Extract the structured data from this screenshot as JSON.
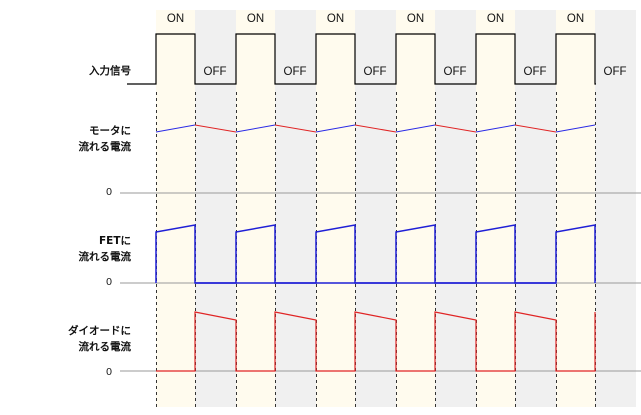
{
  "labels": {
    "input_signal": "入力信号",
    "motor_current_1": "モータに",
    "motor_current_2": "流れる電流",
    "fet_current_1": "FETに",
    "fet_current_2": "流れる電流",
    "diode_current_1": "ダイオードに",
    "diode_current_2": "流れる電流"
  },
  "zero_labels": [
    "0",
    "0",
    "0"
  ],
  "states": [
    "ON",
    "OFF",
    "ON",
    "OFF",
    "ON",
    "OFF",
    "ON",
    "OFF",
    "ON",
    "OFF",
    "ON",
    "OFF"
  ],
  "colors": {
    "on_band": "#fffbee",
    "off_band": "#f0f0f0",
    "signal": "#000000",
    "rising": "#2a2ae6",
    "falling": "#e02424",
    "fet": "#1f1fd6",
    "diode": "#e02424",
    "zero_line": "#9a9a9a",
    "divider": "#333333"
  }
}
